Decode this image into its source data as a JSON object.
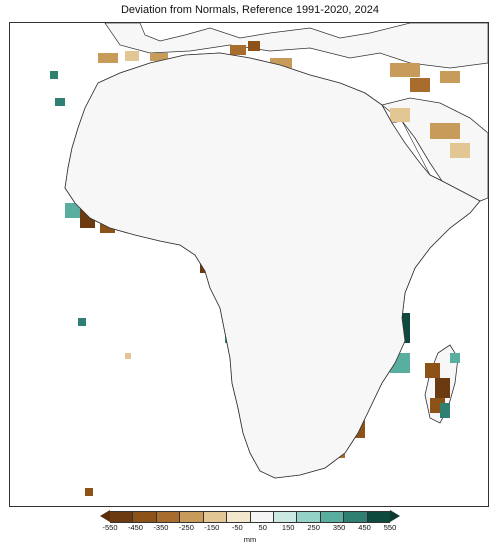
{
  "title": "Deviation from Normals, Reference 1991-2020, 2024",
  "legend": {
    "unit": "mm",
    "ticks": [
      "-550",
      "-450",
      "-350",
      "-250",
      "-150",
      "-50",
      "50",
      "150",
      "250",
      "350",
      "450",
      "550"
    ],
    "colors": [
      "#6b3a10",
      "#8c5218",
      "#a86d2c",
      "#c79b5a",
      "#e2c795",
      "#f4e8cc",
      "#f5f5f5",
      "#cbe8e3",
      "#94d1c6",
      "#5aaea0",
      "#2f7f72",
      "#0e4a3e"
    ],
    "arrow_low_color": "#5a2e0a",
    "arrow_high_color": "#0e3b30"
  },
  "map": {
    "region": "Africa",
    "land_color": "#f7f7f7",
    "coastline_color": "#333333"
  }
}
